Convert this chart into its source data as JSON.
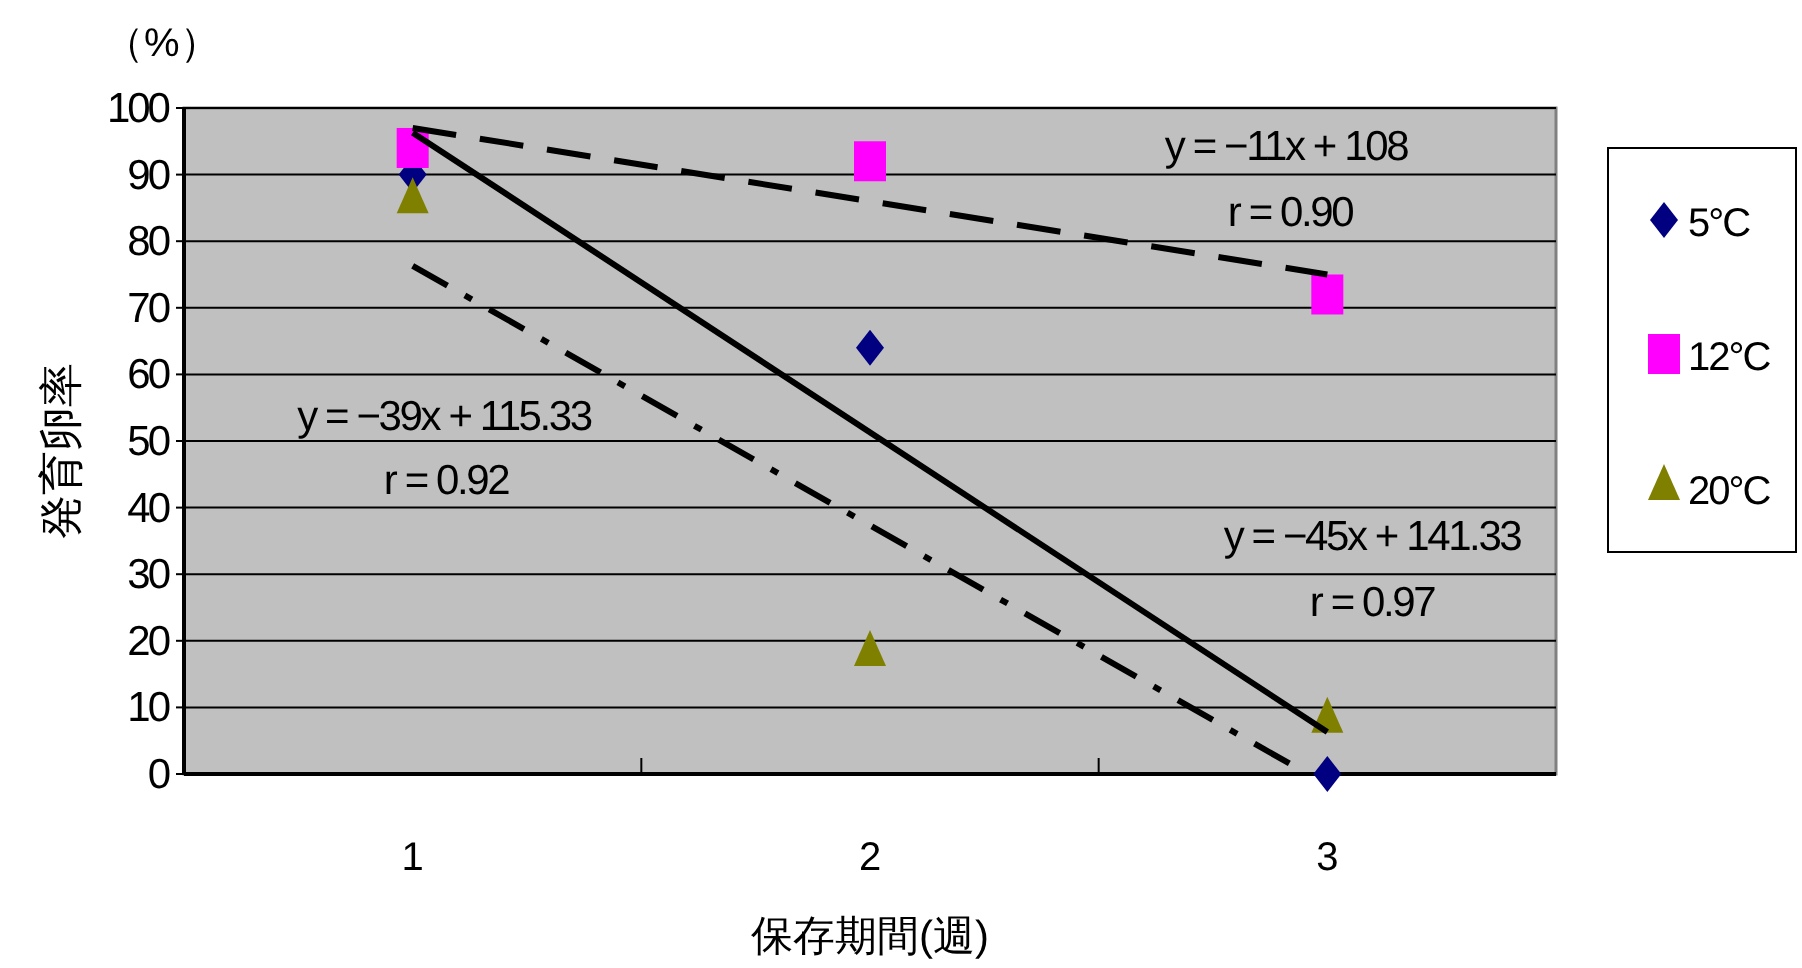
{
  "chart_data": {
    "type": "scatter",
    "xlabel": "保存期間(週)",
    "ylabel": "発育卵率",
    "x": [
      1,
      2,
      3
    ],
    "xlim": [
      0.5,
      3.5
    ],
    "xticks": [
      1,
      {
        "value": 1.5,
        "label": null
      },
      2,
      {
        "value": 2.5,
        "label": null
      },
      3
    ],
    "ylim": [
      0,
      100
    ],
    "yticks": [
      0,
      10,
      20,
      30,
      40,
      50,
      60,
      70,
      80,
      90,
      100
    ],
    "grid": "y",
    "legend": "right",
    "series": [
      {
        "name": "5°C",
        "color": "#000080",
        "marker": "diamond",
        "values": [
          90,
          64,
          0
        ]
      },
      {
        "name": "12°C",
        "color": "#ff00ff",
        "marker": "square",
        "values": [
          94,
          92,
          72
        ]
      },
      {
        "name": "20°C",
        "color": "#808000",
        "marker": "triangle",
        "values": [
          86,
          18,
          8
        ]
      },
      {
        "type": "line",
        "color": "#000000",
        "line_style": "solid",
        "marker": "none",
        "x": [
          1,
          3
        ],
        "values": [
          96.3,
          6.3
        ]
      },
      {
        "type": "line",
        "color": "#000000",
        "line_style": "dashed",
        "marker": "none",
        "x": [
          1,
          3
        ],
        "values": [
          97,
          75
        ]
      },
      {
        "type": "line",
        "color": "#000000",
        "line_style": "dashdot",
        "marker": "none",
        "x": [
          1,
          2.95
        ],
        "values": [
          76.3,
          0.3
        ]
      }
    ],
    "annotations": [
      "（%）",
      "y = −11x + 108",
      "r = 0.90",
      "y = −39x + 115.33",
      "r = 0.92",
      "y = −45x + 141.33",
      "r = 0.97"
    ]
  }
}
